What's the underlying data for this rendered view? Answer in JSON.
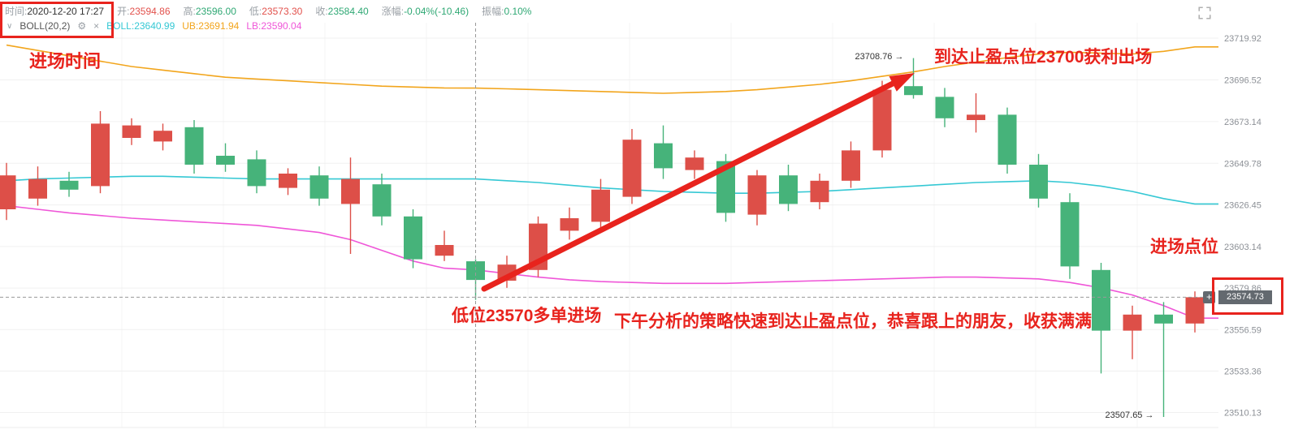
{
  "toolbar": {
    "time": {
      "label": "时间:",
      "value": "2020-12-20 17:27"
    },
    "open": {
      "label": "开:",
      "value": "23594.86"
    },
    "high": {
      "label": "高:",
      "value": "23596.00"
    },
    "low": {
      "label": "低:",
      "value": "23573.30"
    },
    "close": {
      "label": "收:",
      "value": "23584.40"
    },
    "change": {
      "label": "涨幅:",
      "value": "-0.04%(-10.46)"
    },
    "amplitude": {
      "label": "振幅:",
      "value": "0.10%"
    }
  },
  "indicator": {
    "name": "BOLL(20,2)",
    "boll": {
      "label": "BOLL:",
      "value": "23640.99"
    },
    "ub": {
      "label": "UB:",
      "value": "23691.94"
    },
    "lb": {
      "label": "LB:",
      "value": "23590.04"
    }
  },
  "icons": {
    "chevron_down": "∨",
    "gear": "⚙",
    "close": "×",
    "plus": "+",
    "arrow_right": "→"
  },
  "annotations": {
    "entry_time": "进场时间",
    "take_profit": "到达止盈点位23700获利出场",
    "entry_point": "进场点位",
    "entry_low": "低位23570多单进场",
    "congrats": "下午分析的策略快速到达止盈点位，恭喜跟上的朋友，收获满满",
    "peak_price": "23708.76",
    "bottom_price": "23507.65"
  },
  "price_badge": {
    "value": "23574.73"
  },
  "chart_data": {
    "type": "candlestick",
    "title": "",
    "xlabel": "",
    "ylabel": "price",
    "ylim": [
      23500,
      23725
    ],
    "grid": true,
    "y_ticks": [
      23719.92,
      23696.52,
      23673.14,
      23649.78,
      23626.45,
      23603.14,
      23579.86,
      23556.59,
      23533.36,
      23510.13
    ],
    "up_color": "#dd4f48",
    "down_color": "#46b37a",
    "candles": [
      [
        23624,
        23650,
        23618,
        23643
      ],
      [
        23630,
        23648,
        23626,
        23641
      ],
      [
        23640,
        23645,
        23631,
        23635
      ],
      [
        23637,
        23679,
        23633,
        23672
      ],
      [
        23664,
        23675,
        23660,
        23671
      ],
      [
        23662,
        23672,
        23657,
        23668
      ],
      [
        23670,
        23674,
        23644,
        23649
      ],
      [
        23654,
        23661,
        23645,
        23649
      ],
      [
        23652,
        23657,
        23633,
        23637
      ],
      [
        23636,
        23647,
        23632,
        23644
      ],
      [
        23643,
        23648,
        23626,
        23630
      ],
      [
        23627,
        23653,
        23599,
        23641
      ],
      [
        23638,
        23644,
        23615,
        23620
      ],
      [
        23620,
        23624,
        23591,
        23596
      ],
      [
        23598,
        23612,
        23595,
        23604
      ],
      [
        23594.86,
        23596.0,
        23573.3,
        23584.4
      ],
      [
        23584,
        23598,
        23580,
        23593
      ],
      [
        23590,
        23620,
        23586,
        23616
      ],
      [
        23612,
        23625,
        23607,
        23619
      ],
      [
        23617,
        23641,
        23613,
        23635
      ],
      [
        23631,
        23669,
        23627,
        23663
      ],
      [
        23661,
        23671,
        23641,
        23647
      ],
      [
        23646,
        23657,
        23641,
        23653
      ],
      [
        23651,
        23655,
        23617,
        23622
      ],
      [
        23621,
        23646,
        23615,
        23643
      ],
      [
        23643,
        23649,
        23623,
        23627
      ],
      [
        23628,
        23644,
        23624,
        23640
      ],
      [
        23640,
        23662,
        23636,
        23657
      ],
      [
        23657,
        23696,
        23653,
        23691
      ],
      [
        23693,
        23708.76,
        23686,
        23688
      ],
      [
        23687,
        23692,
        23670,
        23675
      ],
      [
        23674,
        23689,
        23667,
        23677
      ],
      [
        23677,
        23681,
        23644,
        23649
      ],
      [
        23649,
        23655,
        23625,
        23630
      ],
      [
        23628,
        23633,
        23585,
        23592
      ],
      [
        23590,
        23594,
        23532,
        23556
      ],
      [
        23556,
        23570,
        23540,
        23565
      ],
      [
        23565,
        23572,
        23507.65,
        23560
      ],
      [
        23560,
        23578,
        23555,
        23574.73
      ]
    ],
    "series": [
      {
        "name": "BOLL",
        "color": "#35c8d4",
        "values": [
          23640,
          23641,
          23641.5,
          23642,
          23642.5,
          23642.5,
          23642,
          23641.5,
          23641,
          23641,
          23641,
          23641,
          23641,
          23641,
          23641,
          23640.99,
          23640,
          23639,
          23637.5,
          23636,
          23635,
          23634,
          23633.5,
          23633,
          23633,
          23633.5,
          23634,
          23635,
          23636,
          23637,
          23638,
          23639,
          23639.5,
          23640,
          23639,
          23637,
          23634,
          23630,
          23627
        ]
      },
      {
        "name": "UB",
        "color": "#f2a51c",
        "values": [
          23716,
          23713,
          23710,
          23707,
          23704,
          23702,
          23700,
          23698,
          23697,
          23696,
          23695,
          23694,
          23693,
          23692.5,
          23692,
          23691.94,
          23691.5,
          23691,
          23690.5,
          23690,
          23689.5,
          23689,
          23689.5,
          23690,
          23691,
          23692.5,
          23694,
          23696,
          23698.5,
          23701,
          23704,
          23706.5,
          23709,
          23711,
          23712,
          23711.5,
          23711,
          23712.5,
          23715
        ]
      },
      {
        "name": "LB",
        "color": "#ef56d8",
        "values": [
          23626,
          23624,
          23622,
          23620.5,
          23619,
          23618,
          23617,
          23616,
          23615,
          23613,
          23611,
          23607,
          23601,
          23595,
          23591,
          23590.04,
          23588,
          23586,
          23584.5,
          23583.5,
          23583,
          23582.5,
          23582.5,
          23582.5,
          23583,
          23583.5,
          23584,
          23584.5,
          23585,
          23585.5,
          23586,
          23586,
          23585.5,
          23585,
          23583,
          23580,
          23576,
          23570,
          23563
        ]
      }
    ],
    "last_price": 23574.73,
    "crosshair_index": 15,
    "peak_label": {
      "index": 29,
      "price": 23708.76
    },
    "bottom_label": {
      "index": 37,
      "price": 23507.65
    }
  }
}
